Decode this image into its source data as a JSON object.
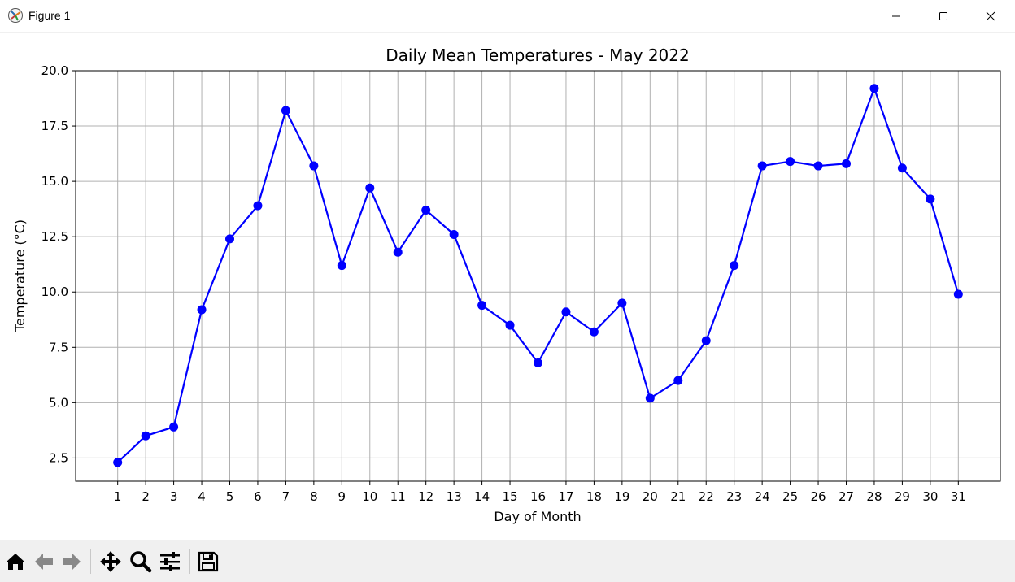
{
  "window": {
    "title": "Figure 1",
    "app_icon": "matplotlib-icon",
    "controls": [
      "minimize-icon",
      "maximize-icon",
      "close-icon"
    ]
  },
  "toolbar": {
    "buttons": [
      "home-icon",
      "back-icon",
      "forward-icon",
      "pan-icon",
      "zoom-icon",
      "configure-subplots-icon",
      "save-icon"
    ]
  },
  "chart_data": {
    "type": "line",
    "title": "Daily Mean Temperatures - May 2022",
    "xlabel": "Day of Month",
    "ylabel": "Temperature (°C)",
    "x": [
      1,
      2,
      3,
      4,
      5,
      6,
      7,
      8,
      9,
      10,
      11,
      12,
      13,
      14,
      15,
      16,
      17,
      18,
      19,
      20,
      21,
      22,
      23,
      24,
      25,
      26,
      27,
      28,
      29,
      30,
      31
    ],
    "series": [
      {
        "values": [
          2.3,
          3.5,
          3.9,
          9.2,
          12.4,
          13.9,
          18.2,
          15.7,
          11.2,
          14.7,
          11.8,
          13.7,
          12.6,
          9.4,
          8.5,
          6.8,
          9.1,
          8.2,
          9.5,
          5.2,
          6.0,
          7.8,
          11.2,
          15.7,
          15.9,
          15.7,
          15.8,
          19.2,
          15.6,
          14.2,
          9.9
        ],
        "color": "#0000ff",
        "marker": "circle"
      }
    ],
    "xticks": [
      "1",
      "2",
      "3",
      "4",
      "5",
      "6",
      "7",
      "8",
      "9",
      "10",
      "11",
      "12",
      "13",
      "14",
      "15",
      "16",
      "17",
      "18",
      "19",
      "20",
      "21",
      "22",
      "23",
      "24",
      "25",
      "26",
      "27",
      "28",
      "29",
      "30",
      "31"
    ],
    "yticks": [
      "2.5",
      "5.0",
      "7.5",
      "10.0",
      "12.5",
      "15.0",
      "17.5",
      "20.0"
    ],
    "ylim": [
      1.45,
      20.0
    ],
    "xlim": [
      -0.5,
      32.5
    ],
    "grid": true
  }
}
